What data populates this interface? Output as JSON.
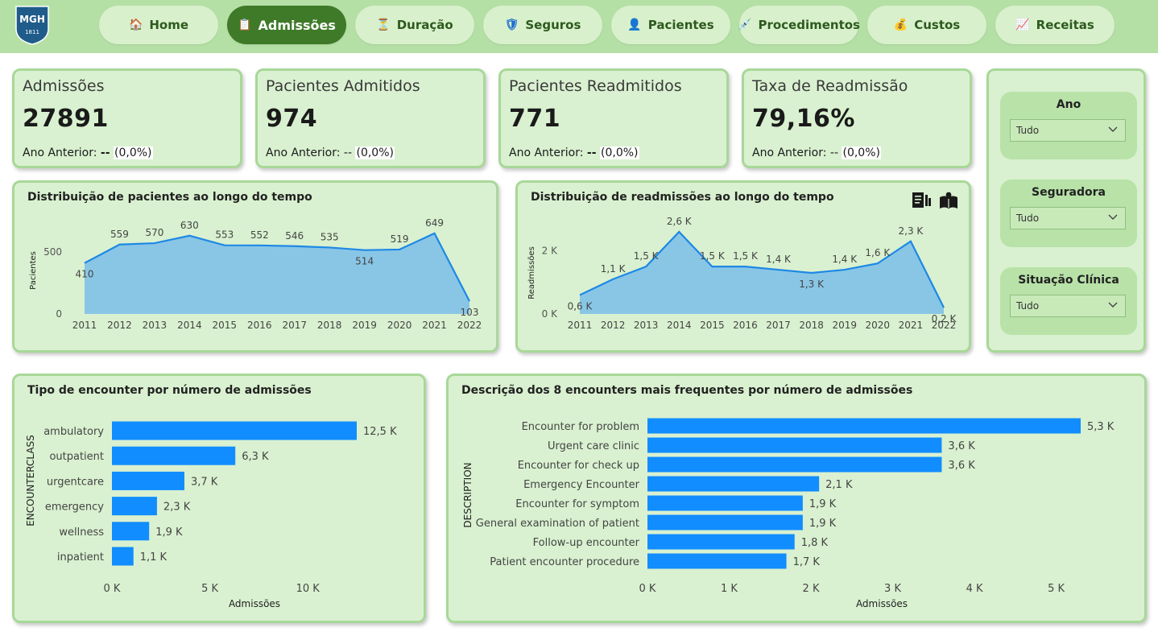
{
  "logo": {
    "text": "MGH",
    "year": "1811"
  },
  "nav": [
    {
      "label": "Home",
      "icon": "house-icon",
      "glyph": "🏠"
    },
    {
      "label": "Admissões",
      "icon": "clipboard-icon",
      "glyph": "📋"
    },
    {
      "label": "Duração",
      "icon": "hourglass-icon",
      "glyph": "⏳"
    },
    {
      "label": "Seguros",
      "icon": "shield-icon",
      "glyph": "🛡"
    },
    {
      "label": "Pacientes",
      "icon": "person-icon",
      "glyph": "👤"
    },
    {
      "label": "Procedimentos",
      "icon": "syringe-icon",
      "glyph": "💉"
    },
    {
      "label": "Custos",
      "icon": "money-bag-icon",
      "glyph": "💰"
    },
    {
      "label": "Receitas",
      "icon": "chart-icon",
      "glyph": "📈"
    }
  ],
  "kpis": [
    {
      "title": "Admissões",
      "value": "27891",
      "sub_label": "Ano Anterior:",
      "sub_dash": "--",
      "sub_pct": "(0,0%)"
    },
    {
      "title": "Pacientes Admitidos",
      "value": "974",
      "sub_label": "Ano Anterior:",
      "sub_dash": "--",
      "sub_pct": "(0,0%)"
    },
    {
      "title": "Pacientes Readmitidos",
      "value": "771",
      "sub_label": "Ano Anterior:",
      "sub_dash": "--",
      "sub_pct": "(0,0%)"
    },
    {
      "title": "Taxa de Readmissão",
      "value": "79,16%",
      "sub_label": "Ano Anterior:",
      "sub_dash": "--",
      "sub_pct": "(0,0%)"
    }
  ],
  "filters": [
    {
      "label": "Ano",
      "value": "Tudo"
    },
    {
      "label": "Seguradora",
      "value": "Tudo"
    },
    {
      "label": "Situação Clínica",
      "value": "Tudo"
    }
  ],
  "toolbar_icons": [
    "report-icon",
    "book-icon"
  ],
  "colors": {
    "area": "#89c6e6",
    "line": "#1e88e5",
    "bar": "#118dff",
    "card": "#d9f1d0",
    "nav_active": "#3e7a28"
  },
  "chart_data": [
    {
      "type": "area",
      "title": "Distribuição de pacientes ao longo do tempo",
      "ylabel": "Pacientes",
      "ylim": [
        0,
        700
      ],
      "yticks": [
        "0",
        "500"
      ],
      "ytick_values": [
        0,
        500
      ],
      "categories": [
        "2011",
        "2012",
        "2013",
        "2014",
        "2015",
        "2016",
        "2017",
        "2018",
        "2019",
        "2020",
        "2021",
        "2022"
      ],
      "values": [
        410,
        559,
        570,
        630,
        553,
        552,
        546,
        535,
        514,
        519,
        649,
        103
      ],
      "labels": [
        "410",
        "559",
        "570",
        "630",
        "553",
        "552",
        "546",
        "535",
        "514",
        "519",
        "649",
        "103"
      ]
    },
    {
      "type": "area",
      "title": "Distribuição de readmissões ao longo do tempo",
      "ylabel": "Readmissões",
      "ylim": [
        0,
        2600
      ],
      "yticks": [
        "0 K",
        "2 K"
      ],
      "ytick_values": [
        0,
        2000
      ],
      "categories": [
        "2011",
        "2012",
        "2013",
        "2014",
        "2015",
        "2016",
        "2017",
        "2018",
        "2019",
        "2020",
        "2021",
        "2022"
      ],
      "values": [
        600,
        1100,
        1500,
        2600,
        1500,
        1500,
        1400,
        1300,
        1400,
        1600,
        2300,
        200
      ],
      "labels": [
        "0,6 K",
        "1,1 K",
        "1,5 K",
        "2,6 K",
        "1,5 K",
        "1,5 K",
        "1,4 K",
        "1,3 K",
        "1,4 K",
        "1,6 K",
        "2,3 K",
        "0,2 K"
      ]
    },
    {
      "type": "bar",
      "orientation": "horizontal",
      "title": "Tipo de encounter por número de admissões",
      "xlabel": "Admissões",
      "ylabel": "ENCOUNTERCLASS",
      "xlim": [
        0,
        12500
      ],
      "xticks": [
        "0 K",
        "5 K",
        "10 K"
      ],
      "xtick_values": [
        0,
        5000,
        10000
      ],
      "categories": [
        "ambulatory",
        "outpatient",
        "urgentcare",
        "emergency",
        "wellness",
        "inpatient"
      ],
      "values": [
        12500,
        6300,
        3700,
        2300,
        1900,
        1100
      ],
      "labels": [
        "12,5 K",
        "6,3 K",
        "3,7 K",
        "2,3 K",
        "1,9 K",
        "1,1 K"
      ]
    },
    {
      "type": "bar",
      "orientation": "horizontal",
      "title": "Descrição dos 8 encounters mais frequentes por número de admissões",
      "xlabel": "Admissões",
      "ylabel": "DESCRIPTION",
      "xlim": [
        0,
        5300
      ],
      "xticks": [
        "0 K",
        "1 K",
        "2 K",
        "3 K",
        "4 K",
        "5 K"
      ],
      "xtick_values": [
        0,
        1000,
        2000,
        3000,
        4000,
        5000
      ],
      "categories": [
        "Encounter for problem",
        "Urgent care clinic",
        "Encounter for check up",
        "Emergency Encounter",
        "Encounter for symptom",
        "General examination of patient",
        "Follow-up encounter",
        "Patient encounter procedure"
      ],
      "values": [
        5300,
        3600,
        3600,
        2100,
        1900,
        1900,
        1800,
        1700
      ],
      "labels": [
        "5,3 K",
        "3,6 K",
        "3,6 K",
        "2,1 K",
        "1,9 K",
        "1,9 K",
        "1,8 K",
        "1,7 K"
      ]
    }
  ]
}
